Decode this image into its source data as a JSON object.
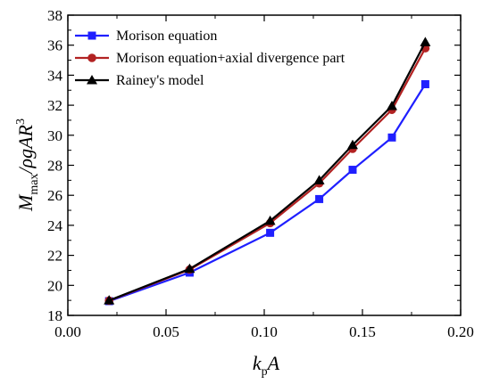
{
  "chart_data": {
    "type": "line",
    "title": "",
    "xlabel": {
      "main": "k",
      "sub": "p",
      "tail": "A"
    },
    "ylabel": {
      "main": "M",
      "sub": "max",
      "tail": "/ρgAR",
      "sup": "3"
    },
    "xlim": [
      0.0,
      0.2
    ],
    "ylim": [
      18,
      38
    ],
    "xticks": [
      "0.00",
      "0.05",
      "0.10",
      "0.15",
      "0.20"
    ],
    "yticks": [
      "18",
      "20",
      "22",
      "24",
      "26",
      "28",
      "30",
      "32",
      "34",
      "36",
      "38"
    ],
    "grid": false,
    "legend_position": "top-left",
    "series": [
      {
        "name": "Morison equation",
        "color": "#1f1fff",
        "marker": "square",
        "x": [
          0.021,
          0.062,
          0.103,
          0.128,
          0.145,
          0.165,
          0.182
        ],
        "y": [
          18.95,
          20.85,
          23.5,
          25.75,
          27.7,
          29.85,
          33.4
        ]
      },
      {
        "name": "Morison equation+axial divergence part",
        "color": "#b22222",
        "marker": "circle",
        "x": [
          0.021,
          0.062,
          0.103,
          0.128,
          0.145,
          0.165,
          0.182
        ],
        "y": [
          18.98,
          21.05,
          24.15,
          26.8,
          29.1,
          31.7,
          35.8
        ]
      },
      {
        "name": "Rainey's model",
        "color": "#000000",
        "marker": "triangle",
        "x": [
          0.021,
          0.062,
          0.103,
          0.128,
          0.145,
          0.165,
          0.182
        ],
        "y": [
          19.0,
          21.1,
          24.3,
          27.0,
          29.35,
          31.95,
          36.2
        ]
      }
    ]
  }
}
